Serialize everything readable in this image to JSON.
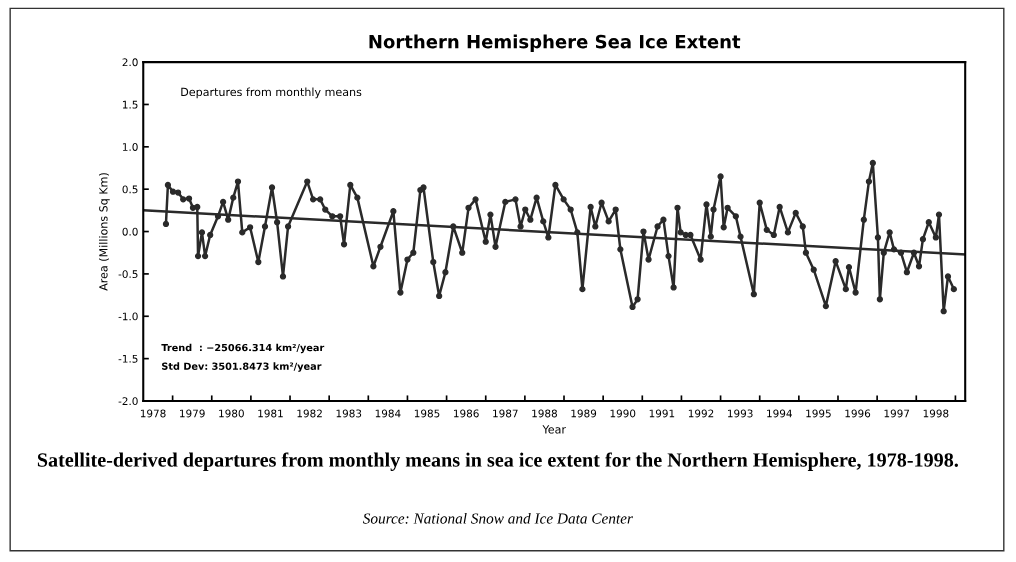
{
  "chart_data": {
    "type": "line",
    "title": "Northern Hemisphere Sea Ice Extent",
    "xlabel": "Year",
    "ylabel": "Area (Millions Sq Km)",
    "annotations": [
      "Departures from monthly means",
      "Trend  : −25066.314 km²/year",
      "Std Dev: 3501.8473 km²/year",
      "Satellite-derived departures from monthly means in sea ice extent for the Northern Hemisphere, 1978-1998.",
      "Source: National Snow and Ice Data Center"
    ],
    "series": [
      {
        "color": "#2a2a2a",
        "marker": "circle",
        "x": [
          1978.83,
          1978.88,
          1979.01,
          1979.14,
          1979.27,
          1979.42,
          1979.52,
          1979.63,
          1979.65,
          1979.75,
          1979.83,
          1979.96,
          1980.16,
          1980.29,
          1980.42,
          1980.55,
          1980.67,
          1980.78,
          1980.98,
          1981.19,
          1981.36,
          1981.54,
          1981.67,
          1981.82,
          1981.95,
          1982.44,
          1982.59,
          1982.77,
          1982.9,
          1983.08,
          1983.28,
          1983.38,
          1983.54,
          1983.72,
          1984.13,
          1984.31,
          1984.64,
          1984.82,
          1985.0,
          1985.15,
          1985.33,
          1985.41,
          1985.66,
          1985.81,
          1985.97,
          1986.17,
          1986.4,
          1986.56,
          1986.74,
          1987.0,
          1987.12,
          1987.25,
          1987.5,
          1987.76,
          1987.89,
          1988.01,
          1988.14,
          1988.3,
          1988.47,
          1988.6,
          1988.78,
          1988.99,
          1989.17,
          1989.34,
          1989.47,
          1989.68,
          1989.8,
          1989.96,
          1990.14,
          1990.32,
          1990.44,
          1990.75,
          1990.88,
          1991.03,
          1991.16,
          1991.39,
          1991.54,
          1991.67,
          1991.8,
          1991.9,
          1991.98,
          1992.11,
          1992.23,
          1992.49,
          1992.64,
          1992.75,
          1992.82,
          1993.0,
          1993.08,
          1993.18,
          1993.39,
          1993.51,
          1993.85,
          1994.0,
          1994.18,
          1994.36,
          1994.51,
          1994.72,
          1994.92,
          1995.1,
          1995.18,
          1995.38,
          1995.69,
          1995.94,
          1996.2,
          1996.28,
          1996.45,
          1996.66,
          1996.79,
          1996.89,
          1997.02,
          1997.07,
          1997.17,
          1997.32,
          1997.43,
          1997.61,
          1997.76,
          1997.94,
          1998.07,
          1998.17,
          1998.32,
          1998.5,
          1998.58,
          1998.7,
          1998.81,
          1998.96
        ],
        "values": [
          0.09,
          0.55,
          0.47,
          0.46,
          0.38,
          0.39,
          0.28,
          0.29,
          -0.29,
          -0.01,
          -0.29,
          -0.04,
          0.18,
          0.35,
          0.14,
          0.4,
          0.59,
          -0.01,
          0.05,
          -0.36,
          0.06,
          0.52,
          0.11,
          -0.53,
          0.06,
          0.59,
          0.38,
          0.38,
          0.26,
          0.18,
          0.18,
          -0.15,
          0.55,
          0.4,
          -0.41,
          -0.18,
          0.24,
          -0.72,
          -0.33,
          -0.25,
          0.49,
          0.52,
          -0.36,
          -0.76,
          -0.48,
          0.06,
          -0.25,
          0.28,
          0.38,
          -0.12,
          0.2,
          -0.18,
          0.35,
          0.38,
          0.06,
          0.26,
          0.14,
          0.4,
          0.12,
          -0.07,
          0.55,
          0.38,
          0.26,
          -0.01,
          -0.68,
          0.29,
          0.06,
          0.34,
          0.12,
          0.26,
          -0.21,
          -0.89,
          -0.8,
          0.0,
          -0.33,
          0.06,
          0.14,
          -0.29,
          -0.66,
          0.28,
          -0.01,
          -0.04,
          -0.04,
          -0.33,
          0.32,
          -0.06,
          0.26,
          0.65,
          0.05,
          0.28,
          0.18,
          -0.06,
          -0.74,
          0.34,
          0.02,
          -0.04,
          0.29,
          -0.01,
          0.22,
          0.06,
          -0.25,
          -0.45,
          -0.88,
          -0.35,
          -0.68,
          -0.42,
          -0.72,
          0.14,
          0.59,
          0.81,
          -0.07,
          -0.8,
          -0.25,
          -0.01,
          -0.21,
          -0.25,
          -0.48,
          -0.25,
          -0.41,
          -0.09,
          0.11,
          -0.07,
          0.2,
          -0.94,
          -0.53,
          -0.68
        ]
      },
      {
        "color": "#2a2a2a",
        "marker": "none",
        "x": [
          1978.25,
          1999.25
        ],
        "values": [
          0.25,
          -0.27
        ]
      }
    ],
    "xlim": [
      1978.25,
      1999.25
    ],
    "xticks": [
      {
        "value": 1978.5,
        "label": "1978"
      },
      {
        "value": 1979,
        "label": null
      },
      {
        "value": 1979.5,
        "label": "1979"
      },
      {
        "value": 1980,
        "label": null
      },
      {
        "value": 1980.5,
        "label": "1980"
      },
      {
        "value": 1981,
        "label": null
      },
      {
        "value": 1981.5,
        "label": "1981"
      },
      {
        "value": 1982,
        "label": null
      },
      {
        "value": 1982.5,
        "label": "1982"
      },
      {
        "value": 1983,
        "label": null
      },
      {
        "value": 1983.5,
        "label": "1983"
      },
      {
        "value": 1984,
        "label": null
      },
      {
        "value": 1984.5,
        "label": "1984"
      },
      {
        "value": 1985,
        "label": null
      },
      {
        "value": 1985.5,
        "label": "1985"
      },
      {
        "value": 1986,
        "label": null
      },
      {
        "value": 1986.5,
        "label": "1986"
      },
      {
        "value": 1987,
        "label": null
      },
      {
        "value": 1987.5,
        "label": "1987"
      },
      {
        "value": 1988,
        "label": null
      },
      {
        "value": 1988.5,
        "label": "1988"
      },
      {
        "value": 1989,
        "label": null
      },
      {
        "value": 1989.5,
        "label": "1989"
      },
      {
        "value": 1990,
        "label": null
      },
      {
        "value": 1990.5,
        "label": "1990"
      },
      {
        "value": 1991,
        "label": null
      },
      {
        "value": 1991.5,
        "label": "1991"
      },
      {
        "value": 1992,
        "label": null
      },
      {
        "value": 1992.5,
        "label": "1992"
      },
      {
        "value": 1993,
        "label": null
      },
      {
        "value": 1993.5,
        "label": "1993"
      },
      {
        "value": 1994,
        "label": null
      },
      {
        "value": 1994.5,
        "label": "1994"
      },
      {
        "value": 1995,
        "label": null
      },
      {
        "value": 1995.5,
        "label": "1995"
      },
      {
        "value": 1996,
        "label": null
      },
      {
        "value": 1996.5,
        "label": "1996"
      },
      {
        "value": 1997,
        "label": null
      },
      {
        "value": 1997.5,
        "label": "1997"
      },
      {
        "value": 1998,
        "label": null
      },
      {
        "value": 1998.5,
        "label": "1998"
      },
      {
        "value": 1999,
        "label": null
      }
    ],
    "ylim": [
      -2.0,
      2.0
    ],
    "yticks": [
      {
        "value": -2,
        "label": "-2.0"
      },
      {
        "value": -1.5,
        "label": "-1.5"
      },
      {
        "value": -1,
        "label": "-1.0"
      },
      {
        "value": -0.5,
        "label": "-0.5"
      },
      {
        "value": 0,
        "label": "0.0"
      },
      {
        "value": 0.5,
        "label": "0.5"
      },
      {
        "value": 1,
        "label": "1.0"
      },
      {
        "value": 1.5,
        "label": "1.5"
      },
      {
        "value": 2,
        "label": "2.0"
      }
    ]
  }
}
